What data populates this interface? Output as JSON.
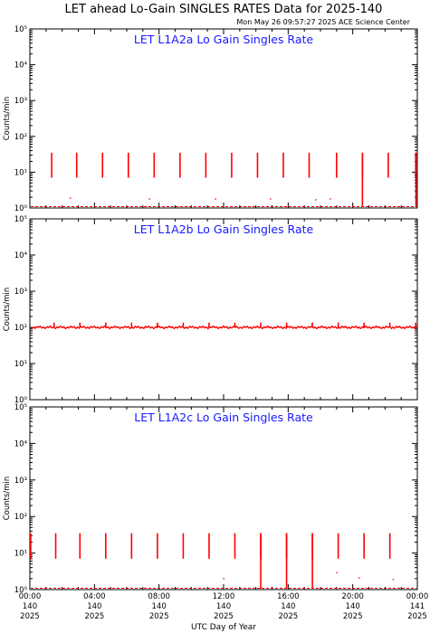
{
  "title": "LET ahead Lo-Gain SINGLES RATES Data for 2025-140",
  "timestamp": "Mon May 26 09:57:27 2025 ACE Science Center",
  "xlabel": "UTC Day of Year",
  "colors": {
    "series": "#ff0000",
    "panel_title": "#1a1aff",
    "axis": "#000000"
  },
  "chart_data": [
    {
      "type": "line",
      "title": "LET L1A2a Lo Gain Singles Rate",
      "ylabel": "Counts/min",
      "yscale": "log",
      "ylim": [
        1,
        100000
      ],
      "y_tick_labels": [
        "10⁰",
        "10¹",
        "10²",
        "10³",
        "10⁴",
        "10⁵"
      ],
      "xlim": [
        0,
        24
      ],
      "baseline": 1,
      "spikes": [
        {
          "x": 1.35,
          "y": 35
        },
        {
          "x": 2.9,
          "y": 35
        },
        {
          "x": 4.5,
          "y": 35
        },
        {
          "x": 6.1,
          "y": 35
        },
        {
          "x": 7.7,
          "y": 35
        },
        {
          "x": 9.3,
          "y": 35
        },
        {
          "x": 10.9,
          "y": 35
        },
        {
          "x": 12.5,
          "y": 35
        },
        {
          "x": 14.1,
          "y": 35
        },
        {
          "x": 15.7,
          "y": 35
        },
        {
          "x": 17.3,
          "y": 35
        },
        {
          "x": 19.0,
          "y": 35
        },
        {
          "x": 20.6,
          "y": 35
        },
        {
          "x": 22.2,
          "y": 35
        },
        {
          "x": 23.9,
          "y": 35
        }
      ],
      "dropouts": [
        {
          "x": 20.6
        },
        {
          "x": 24.0
        }
      ],
      "scatter_points": [
        {
          "x": 2.5,
          "y": 1.9
        },
        {
          "x": 7.4,
          "y": 1.8
        },
        {
          "x": 11.5,
          "y": 1.8
        },
        {
          "x": 14.9,
          "y": 1.8
        },
        {
          "x": 17.7,
          "y": 1.7
        },
        {
          "x": 18.6,
          "y": 1.8
        }
      ]
    },
    {
      "type": "line",
      "title": "LET L1A2b Lo Gain Singles Rate",
      "ylabel": "Counts/min",
      "yscale": "log",
      "ylim": [
        1,
        100000
      ],
      "y_tick_labels": [
        "10⁰",
        "10¹",
        "10²",
        "10³",
        "10⁴",
        "10⁵"
      ],
      "xlim": [
        0,
        24
      ],
      "baseline": 100,
      "spikes": [
        {
          "x": 1.5,
          "y": 135
        },
        {
          "x": 3.1,
          "y": 135
        },
        {
          "x": 4.7,
          "y": 135
        },
        {
          "x": 6.3,
          "y": 135
        },
        {
          "x": 7.9,
          "y": 135
        },
        {
          "x": 9.5,
          "y": 135
        },
        {
          "x": 11.1,
          "y": 135
        },
        {
          "x": 12.7,
          "y": 135
        },
        {
          "x": 14.3,
          "y": 135
        },
        {
          "x": 15.9,
          "y": 135
        },
        {
          "x": 17.5,
          "y": 135
        },
        {
          "x": 19.1,
          "y": 135
        },
        {
          "x": 20.7,
          "y": 135
        },
        {
          "x": 22.3,
          "y": 135
        },
        {
          "x": 23.9,
          "y": 135
        }
      ],
      "dropouts": [],
      "scatter_points": []
    },
    {
      "type": "line",
      "title": "LET L1A2c Lo Gain Singles Rate",
      "ylabel": "Counts/min",
      "yscale": "log",
      "ylim": [
        1,
        100000
      ],
      "y_tick_labels": [
        "10⁰",
        "10¹",
        "10²",
        "10³",
        "10⁴",
        "10⁵"
      ],
      "xlim": [
        0,
        24
      ],
      "baseline": 1,
      "spikes": [
        {
          "x": 0.05,
          "y": 35
        },
        {
          "x": 1.6,
          "y": 35
        },
        {
          "x": 3.1,
          "y": 35
        },
        {
          "x": 4.7,
          "y": 35
        },
        {
          "x": 6.3,
          "y": 35
        },
        {
          "x": 7.9,
          "y": 35
        },
        {
          "x": 9.5,
          "y": 35
        },
        {
          "x": 11.1,
          "y": 35
        },
        {
          "x": 12.7,
          "y": 35
        },
        {
          "x": 14.3,
          "y": 35
        },
        {
          "x": 15.9,
          "y": 35
        },
        {
          "x": 17.5,
          "y": 35
        },
        {
          "x": 19.1,
          "y": 35
        },
        {
          "x": 20.7,
          "y": 35
        },
        {
          "x": 22.3,
          "y": 35
        }
      ],
      "dropouts": [
        {
          "x": 14.3
        },
        {
          "x": 15.9
        },
        {
          "x": 17.5
        }
      ],
      "scatter_points": [
        {
          "x": 12.0,
          "y": 2.0
        },
        {
          "x": 19.0,
          "y": 2.9
        },
        {
          "x": 20.4,
          "y": 2.1
        },
        {
          "x": 22.5,
          "y": 1.9
        }
      ]
    }
  ],
  "x_ticks": [
    {
      "hour": 0,
      "time": "00:00",
      "doy": "140",
      "year": "2025"
    },
    {
      "hour": 4,
      "time": "04:00",
      "doy": "140",
      "year": "2025"
    },
    {
      "hour": 8,
      "time": "08:00",
      "doy": "140",
      "year": "2025"
    },
    {
      "hour": 12,
      "time": "12:00",
      "doy": "140",
      "year": "2025"
    },
    {
      "hour": 16,
      "time": "16:00",
      "doy": "140",
      "year": "2025"
    },
    {
      "hour": 20,
      "time": "20:00",
      "doy": "140",
      "year": "2025"
    },
    {
      "hour": 24,
      "time": "00:00",
      "doy": "141",
      "year": "2025"
    }
  ]
}
